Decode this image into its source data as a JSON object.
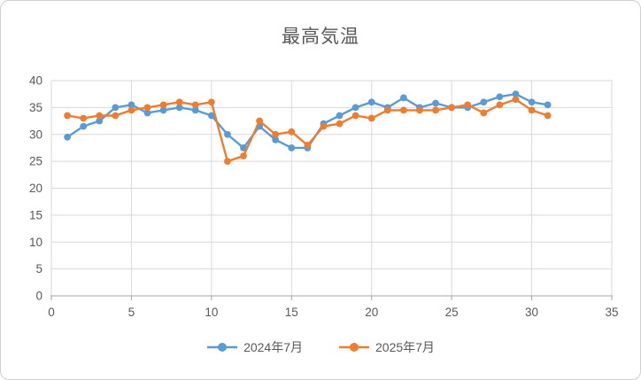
{
  "chart": {
    "title": "最高気温"
  },
  "colors": {
    "text": "#595959",
    "grid": "#d9d9d9",
    "axis": "#a6a6a6",
    "background": "#ffffff",
    "series_blue": "#5b9bd5",
    "series_orange": "#ed7d31"
  },
  "chart_data": {
    "type": "line",
    "title": "最高気温",
    "xlabel": "",
    "ylabel": "",
    "xlim": [
      0,
      35
    ],
    "ylim": [
      0,
      40
    ],
    "xticks": [
      0,
      5,
      10,
      15,
      20,
      25,
      30,
      35
    ],
    "yticks": [
      0,
      5,
      10,
      15,
      20,
      25,
      30,
      35,
      40
    ],
    "grid": "major-both",
    "legend_position": "bottom",
    "marker": "circle",
    "x": [
      1,
      2,
      3,
      4,
      5,
      6,
      7,
      8,
      9,
      10,
      11,
      12,
      13,
      14,
      15,
      16,
      17,
      18,
      19,
      20,
      21,
      22,
      23,
      24,
      25,
      26,
      27,
      28,
      29,
      30,
      31
    ],
    "series": [
      {
        "name": "2024年7月",
        "color": "#5b9bd5",
        "values": [
          29.5,
          31.5,
          32.5,
          35,
          35.5,
          34,
          34.5,
          35,
          34.5,
          33.5,
          30,
          27.5,
          31.5,
          29,
          27.5,
          27.5,
          32,
          33.5,
          35,
          36,
          35,
          36.8,
          35,
          35.8,
          35,
          35,
          36,
          37,
          37.5,
          36,
          35.5
        ]
      },
      {
        "name": "2025年7月",
        "color": "#ed7d31",
        "values": [
          33.5,
          33,
          33.5,
          33.5,
          34.5,
          35,
          35.5,
          36,
          35.5,
          36,
          25,
          26,
          32.5,
          30,
          30.5,
          28,
          31.5,
          32,
          33.5,
          33,
          34.5,
          34.5,
          34.5,
          34.5,
          35,
          35.5,
          34,
          35.5,
          36.5,
          34.5,
          33.5
        ]
      }
    ]
  }
}
